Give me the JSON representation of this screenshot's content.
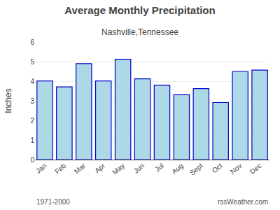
{
  "chart_data": {
    "type": "bar",
    "title": "Average Monthly Precipitation",
    "subtitle": "Nashville,Tennessee",
    "ylabel": "Inches",
    "categories": [
      "Jan",
      "Feb",
      "Mar",
      "Apr",
      "May",
      "Jun",
      "Jul",
      "Aug",
      "Sept",
      "Oct",
      "Nov",
      "Dec"
    ],
    "values": [
      4.01,
      3.71,
      4.9,
      4.01,
      5.12,
      4.12,
      3.8,
      3.31,
      3.62,
      2.91,
      4.5,
      4.57
    ],
    "color": "#ADD8E6",
    "ylim": [
      0.0,
      6.0
    ],
    "yticks": [
      0,
      1,
      2,
      3,
      4,
      5,
      6
    ],
    "grid": true,
    "annotations": [
      "1971-2000",
      "rssWeather.com"
    ]
  }
}
